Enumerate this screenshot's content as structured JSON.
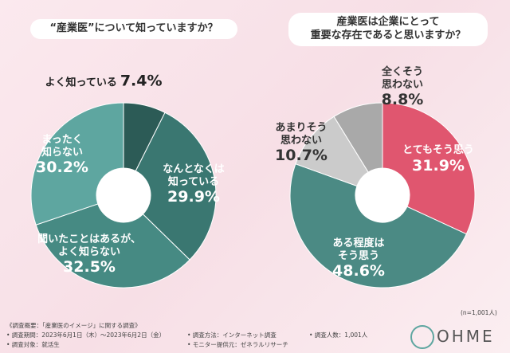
{
  "chart_data": [
    {
      "type": "donut",
      "title": "“産業医”について知っていますか？",
      "categories": [
        "よく知っている",
        "なんとなくは\n知っている",
        "聞いたことはあるが、\nよく知らない",
        "まったく\n知らない"
      ],
      "values": [
        7.4,
        29.9,
        32.5,
        30.2
      ],
      "value_labels": [
        "7.4%",
        "29.9%",
        "32.5%",
        "30.2%"
      ],
      "colors": [
        "#2c5b56",
        "#3a7771",
        "#468a83",
        "#5ea6a0"
      ]
    },
    {
      "type": "donut",
      "title": "産業医は企業にとって\n重要な存在であると思いますか？",
      "categories": [
        "とてもそう思う",
        "ある程度は\nそう思う",
        "あまりそう\n思わない",
        "全くそう\n思わない"
      ],
      "values": [
        31.9,
        48.6,
        10.7,
        8.8
      ],
      "value_labels": [
        "31.9%",
        "48.6%",
        "10.7%",
        "8.8%"
      ],
      "colors": [
        "#e0566f",
        "#4b8a84",
        "#cbcbcb",
        "#a9a9a9"
      ]
    }
  ],
  "sample_note": "(n=1,001人)",
  "footer": [
    "《調査概要：「産業医のイメージ」に関する調査》",
    "• 調査期間：2023年6月1日（木）～2023年6月2日（金）",
    "• 調査対象：就活生",
    "• 調査方法：インターネット調査",
    "• モニター提供元：ゼネラルリサーチ",
    "• 調査人数：1,001人"
  ],
  "brand": "OHME"
}
